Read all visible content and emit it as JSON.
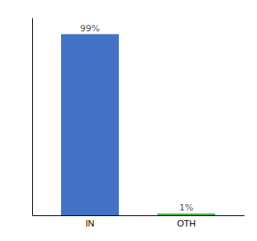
{
  "chart_data": {
    "type": "bar",
    "categories": [
      "IN",
      "OTH"
    ],
    "values": [
      99,
      1
    ],
    "value_labels": [
      "99%",
      "1%"
    ],
    "colors": [
      "#4472c4",
      "#3db83d"
    ],
    "ylim": [
      0,
      108
    ],
    "yticks": [],
    "data_labels": true,
    "tick_labels": "x",
    "grid": false
  }
}
